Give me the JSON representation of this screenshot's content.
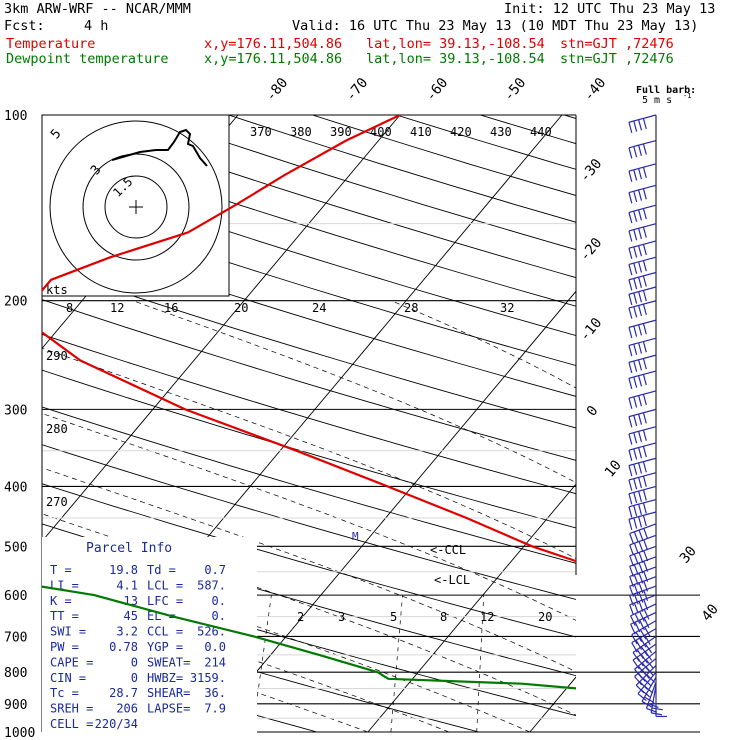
{
  "header": {
    "model": "3km ARW-WRF -- NCAR/MMM",
    "init": "Init: 12 UTC Thu 23 May 13",
    "fcst_label": "Fcst:",
    "fcst_value": "4 h",
    "valid": "Valid: 16 UTC Thu 23 May 13 (10 MDT Thu 23 May 13)"
  },
  "series_labels": {
    "temperature": {
      "name": "Temperature",
      "xy": "x,y=176.11,504.86",
      "latlon": "lat,lon= 39.13,-108.54",
      "stn": "stn=GJT ,72476"
    },
    "dewpoint": {
      "name": "Dewpoint temperature",
      "xy": "x,y=176.11,504.86",
      "latlon": "lat,lon= 39.13,-108.54",
      "stn": "stn=GJT ,72476"
    }
  },
  "full_barb": {
    "line1": "Full barb:",
    "line2": "5 m s",
    "unit_sup": "-1"
  },
  "hodograph": {
    "units": "kts",
    "ring_labels": [
      "5",
      "3",
      "1.5"
    ]
  },
  "parcel_info": {
    "title": "Parcel Info",
    "rows": [
      [
        "T  =",
        "19.8",
        "Td  =",
        "0.7"
      ],
      [
        "LI =",
        "4.1",
        "LCL =",
        "587."
      ],
      [
        "K  =",
        "13",
        "LFC =",
        "0."
      ],
      [
        "TT =",
        "45",
        "EL  =",
        "0."
      ],
      [
        "SWI =",
        "3.2",
        "CCL =",
        "526."
      ],
      [
        "PW =",
        "0.78",
        "YGP =",
        "0.0"
      ],
      [
        "CAPE =",
        "0",
        "SWEAT=",
        "214"
      ],
      [
        "CIN =",
        "0",
        "HWBZ=",
        "3159."
      ],
      [
        "Tc =",
        "28.7",
        "SHEAR=",
        "36."
      ],
      [
        "SREH =",
        "206",
        "LAPSE=",
        "7.9"
      ],
      [
        "CELL =",
        "220/34",
        "",
        ""
      ]
    ]
  },
  "level_markers": {
    "ccl": "<-CCL",
    "lcl": "<-LCL",
    "m": "M"
  },
  "colors": {
    "temperature": "#e00000",
    "dewpoint": "#007a00",
    "barbs": "#2a2aaa",
    "grid": "#000000"
  },
  "chart_data": {
    "type": "skew-T log-P sounding",
    "y_axis": {
      "scale": "log",
      "units": "hPa",
      "range": [
        1000,
        100
      ],
      "tick_labels": [
        100,
        200,
        300,
        400,
        500,
        600,
        700,
        800,
        900,
        1000
      ]
    },
    "isotherm_labels": [
      -80,
      -70,
      -60,
      -50,
      -40,
      -30,
      -20,
      -10,
      0,
      10,
      20,
      30,
      40
    ],
    "theta_labels": {
      "top_row": [
        370,
        380,
        390,
        400,
        410,
        420,
        430,
        440
      ],
      "left_column": [
        290,
        280,
        270
      ]
    },
    "mixing_ratio_labels": [
      2,
      3,
      5,
      8,
      12,
      20
    ],
    "hodograph_speed_labels": [
      8,
      12,
      16,
      20,
      24,
      28,
      32
    ],
    "series": [
      {
        "name": "Temperature",
        "points": [
          {
            "p": 100,
            "t": -40.0
          },
          {
            "p": 110,
            "t": -42.0
          },
          {
            "p": 125,
            "t": -44.0
          },
          {
            "p": 140,
            "t": -45.5
          },
          {
            "p": 155,
            "t": -47.0
          },
          {
            "p": 170,
            "t": -50.5
          },
          {
            "p": 185,
            "t": -53.0
          },
          {
            "p": 200,
            "t": -53.0
          },
          {
            "p": 215,
            "t": -52.5
          },
          {
            "p": 250,
            "t": -47.0
          },
          {
            "p": 300,
            "t": -38.0
          },
          {
            "p": 350,
            "t": -29.0
          },
          {
            "p": 400,
            "t": -21.5
          },
          {
            "p": 450,
            "t": -15.0
          },
          {
            "p": 500,
            "t": -9.5
          },
          {
            "p": 550,
            "t": -3.5
          },
          {
            "p": 600,
            "t": 1.0
          },
          {
            "p": 650,
            "t": 6.0
          },
          {
            "p": 700,
            "t": 10.5
          },
          {
            "p": 750,
            "t": 14.5
          },
          {
            "p": 800,
            "t": 17.5
          },
          {
            "p": 815,
            "t": 18.5
          },
          {
            "p": 835,
            "t": 17.5
          },
          {
            "p": 850,
            "t": 19.8
          }
        ]
      },
      {
        "name": "Dewpoint temperature",
        "points": [
          {
            "p": 100,
            "t": -83.0
          },
          {
            "p": 110,
            "t": -80.0
          },
          {
            "p": 125,
            "t": -78.0
          },
          {
            "p": 140,
            "t": -77.5
          },
          {
            "p": 155,
            "t": -78.5
          },
          {
            "p": 170,
            "t": -79.5
          },
          {
            "p": 185,
            "t": -80.5
          },
          {
            "p": 200,
            "t": -80.5
          },
          {
            "p": 215,
            "t": -79.5
          },
          {
            "p": 250,
            "t": -77.0
          },
          {
            "p": 300,
            "t": -72.0
          },
          {
            "p": 350,
            "t": -71.0
          },
          {
            "p": 400,
            "t": -71.0
          },
          {
            "p": 450,
            "t": -66.0
          },
          {
            "p": 500,
            "t": -54.0
          },
          {
            "p": 550,
            "t": -44.0
          },
          {
            "p": 600,
            "t": -34.0
          },
          {
            "p": 650,
            "t": -28.0
          },
          {
            "p": 700,
            "t": -22.0
          },
          {
            "p": 750,
            "t": -17.0
          },
          {
            "p": 800,
            "t": -12.5
          },
          {
            "p": 820,
            "t": -11.5
          },
          {
            "p": 835,
            "t": -3.0
          },
          {
            "p": 850,
            "t": 0.7
          }
        ]
      }
    ],
    "wind_barbs": [
      {
        "p": 100,
        "dir": 255,
        "spd_ms": 20
      },
      {
        "p": 110,
        "dir": 255,
        "spd_ms": 20
      },
      {
        "p": 120,
        "dir": 255,
        "spd_ms": 20
      },
      {
        "p": 130,
        "dir": 255,
        "spd_ms": 20
      },
      {
        "p": 140,
        "dir": 255,
        "spd_ms": 20
      },
      {
        "p": 150,
        "dir": 255,
        "spd_ms": 20
      },
      {
        "p": 160,
        "dir": 255,
        "spd_ms": 20
      },
      {
        "p": 170,
        "dir": 255,
        "spd_ms": 20
      },
      {
        "p": 180,
        "dir": 255,
        "spd_ms": 20
      },
      {
        "p": 190,
        "dir": 255,
        "spd_ms": 20
      },
      {
        "p": 200,
        "dir": 255,
        "spd_ms": 20
      },
      {
        "p": 215,
        "dir": 255,
        "spd_ms": 20
      },
      {
        "p": 230,
        "dir": 255,
        "spd_ms": 20
      },
      {
        "p": 245,
        "dir": 255,
        "spd_ms": 20
      },
      {
        "p": 260,
        "dir": 255,
        "spd_ms": 20
      },
      {
        "p": 280,
        "dir": 255,
        "spd_ms": 20
      },
      {
        "p": 300,
        "dir": 255,
        "spd_ms": 20
      },
      {
        "p": 320,
        "dir": 255,
        "spd_ms": 20
      },
      {
        "p": 340,
        "dir": 255,
        "spd_ms": 20
      },
      {
        "p": 360,
        "dir": 255,
        "spd_ms": 20
      },
      {
        "p": 380,
        "dir": 255,
        "spd_ms": 20
      },
      {
        "p": 400,
        "dir": 255,
        "spd_ms": 20
      },
      {
        "p": 420,
        "dir": 255,
        "spd_ms": 20
      },
      {
        "p": 440,
        "dir": 255,
        "spd_ms": 20
      },
      {
        "p": 460,
        "dir": 250,
        "spd_ms": 20
      },
      {
        "p": 480,
        "dir": 250,
        "spd_ms": 20
      },
      {
        "p": 500,
        "dir": 250,
        "spd_ms": 20
      },
      {
        "p": 520,
        "dir": 250,
        "spd_ms": 20
      },
      {
        "p": 540,
        "dir": 250,
        "spd_ms": 20
      },
      {
        "p": 560,
        "dir": 250,
        "spd_ms": 20
      },
      {
        "p": 580,
        "dir": 250,
        "spd_ms": 20
      },
      {
        "p": 600,
        "dir": 250,
        "spd_ms": 20
      },
      {
        "p": 620,
        "dir": 245,
        "spd_ms": 20
      },
      {
        "p": 640,
        "dir": 245,
        "spd_ms": 20
      },
      {
        "p": 660,
        "dir": 240,
        "spd_ms": 20
      },
      {
        "p": 680,
        "dir": 240,
        "spd_ms": 20
      },
      {
        "p": 700,
        "dir": 235,
        "spd_ms": 20
      },
      {
        "p": 720,
        "dir": 235,
        "spd_ms": 20
      },
      {
        "p": 740,
        "dir": 230,
        "spd_ms": 20
      },
      {
        "p": 760,
        "dir": 230,
        "spd_ms": 20
      },
      {
        "p": 780,
        "dir": 225,
        "spd_ms": 20
      },
      {
        "p": 800,
        "dir": 220,
        "spd_ms": 15
      },
      {
        "p": 815,
        "dir": 210,
        "spd_ms": 10
      },
      {
        "p": 830,
        "dir": 200,
        "spd_ms": 10
      },
      {
        "p": 840,
        "dir": 190,
        "spd_ms": 10
      },
      {
        "p": 850,
        "dir": 180,
        "spd_ms": 5
      }
    ]
  }
}
